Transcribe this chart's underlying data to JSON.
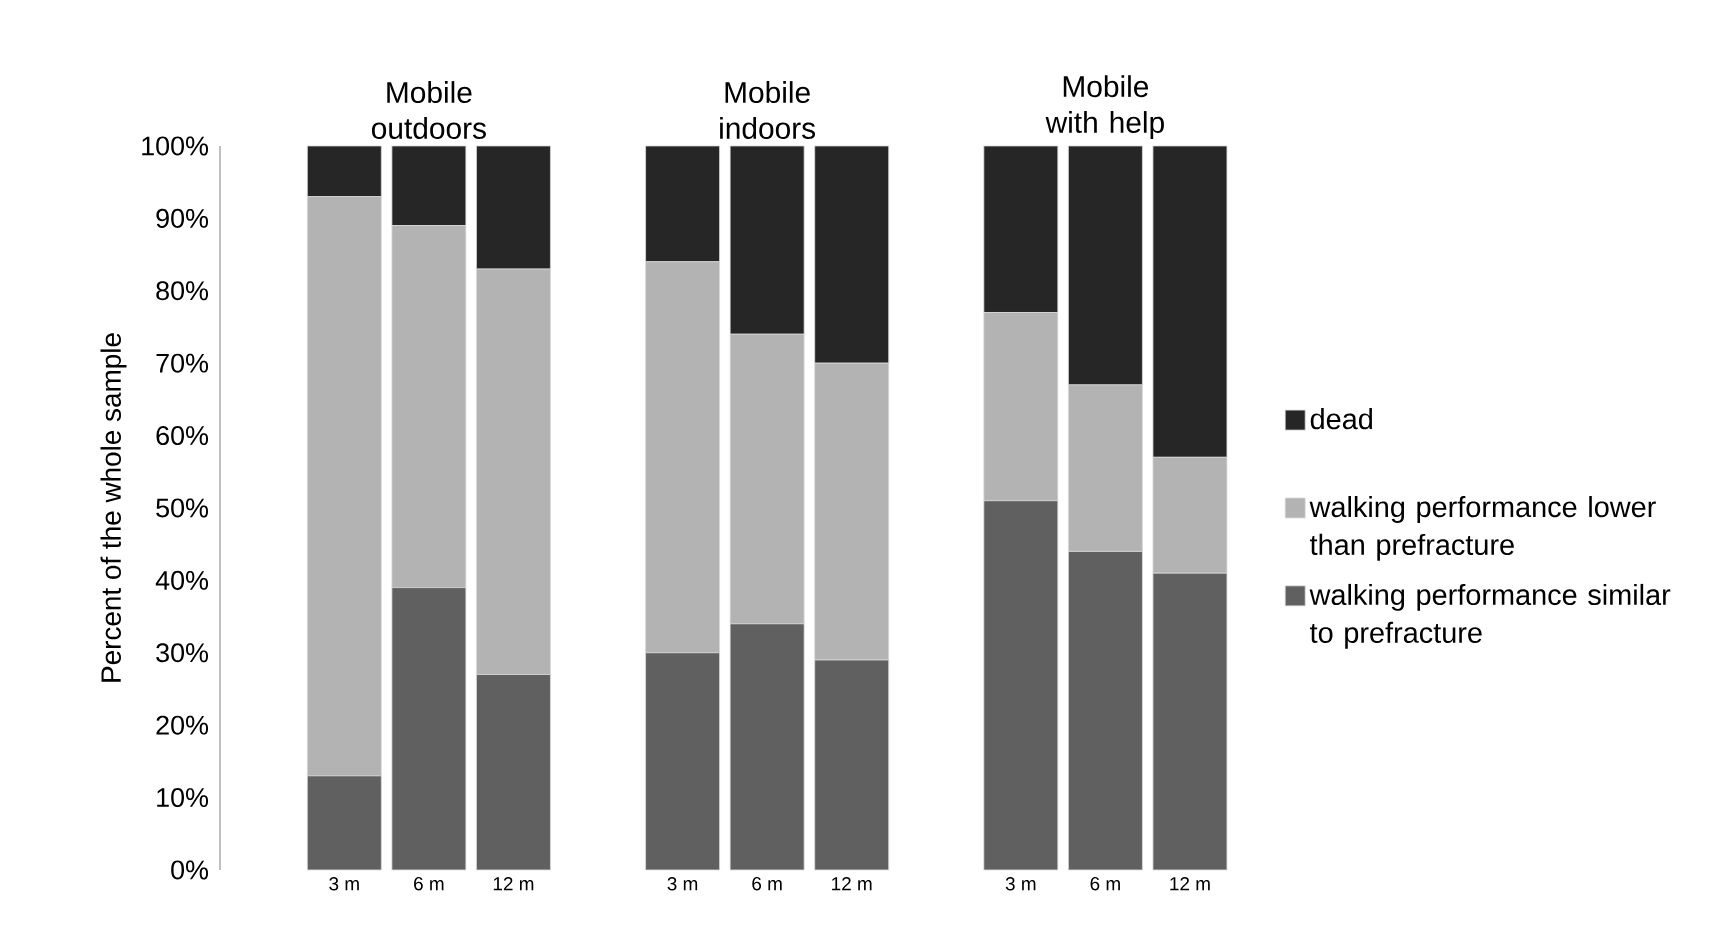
{
  "chart_data": {
    "type": "bar",
    "stacked": true,
    "categories": [
      "3 m",
      "6 m",
      "12 m",
      null,
      "3 m",
      "6 m",
      "12 m",
      null,
      "3 m",
      "6 m",
      "12 m"
    ],
    "series": [
      {
        "name": "walking performance similar to prefracture",
        "color": "#606060",
        "values": [
          13,
          39,
          27,
          null,
          30,
          34,
          29,
          null,
          51,
          44,
          41
        ]
      },
      {
        "name": "walking performance lower than prefracture",
        "color": "#b3b3b3",
        "values": [
          80,
          50,
          56,
          null,
          54,
          40,
          41,
          null,
          26,
          23,
          16
        ]
      },
      {
        "name": "dead",
        "color": "#262626",
        "values": [
          7,
          11,
          17,
          null,
          16,
          26,
          30,
          null,
          23,
          33,
          43
        ]
      }
    ],
    "ylabel": "Percent of the whole sample",
    "ylim": [
      0,
      100
    ],
    "yticks": [
      {
        "value": 0,
        "label": "0%"
      },
      {
        "value": 10,
        "label": "10%"
      },
      {
        "value": 20,
        "label": "20%"
      },
      {
        "value": 30,
        "label": "30%"
      },
      {
        "value": 40,
        "label": "40%"
      },
      {
        "value": 50,
        "label": "50%"
      },
      {
        "value": 60,
        "label": "60%"
      },
      {
        "value": 70,
        "label": "70%"
      },
      {
        "value": 80,
        "label": "80%"
      },
      {
        "value": 90,
        "label": "90%"
      },
      {
        "value": 100,
        "label": "100%"
      }
    ],
    "annotations": [
      "Mobile outdoors",
      "Mobile indoors",
      "Mobile with help"
    ],
    "legend": "right",
    "grid": false
  }
}
